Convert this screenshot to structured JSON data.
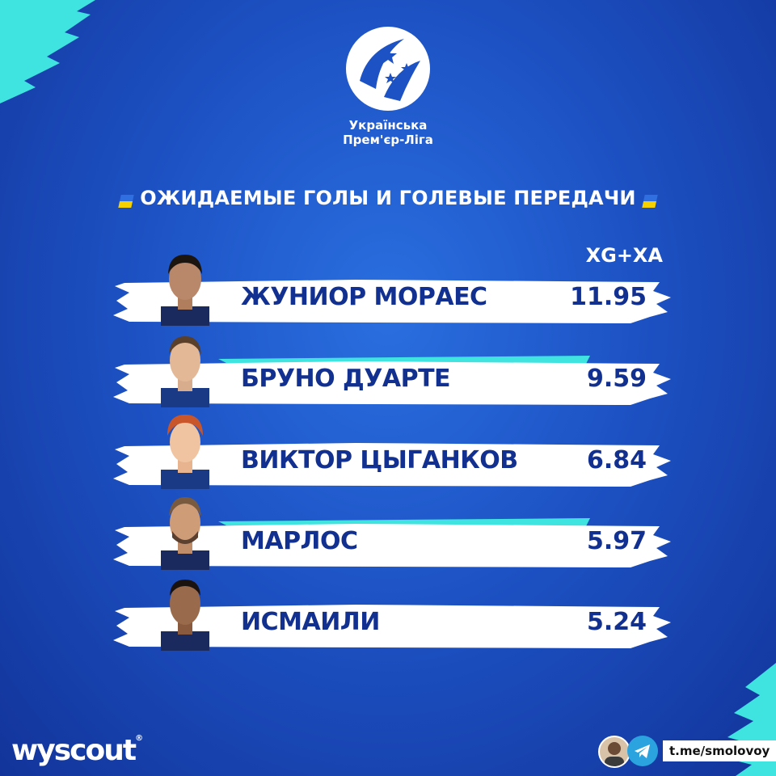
{
  "league": {
    "name_line1": "Українська",
    "name_line2": "Прем'єр-Ліга"
  },
  "title": "ОЖИДАЕМЫЕ ГОЛЫ И ГОЛЕВЫЕ ПЕРЕДАЧИ",
  "column_header": "XG+XA",
  "players": [
    {
      "name": "ЖУНИОР МОРАЕС",
      "value": "11.95"
    },
    {
      "name": "БРУНО ДУАРТЕ",
      "value": "9.59"
    },
    {
      "name": "ВИКТОР ЦЫГАНКОВ",
      "value": "6.84"
    },
    {
      "name": "МАРЛОС",
      "value": "5.97"
    },
    {
      "name": "ИСМАИЛИ",
      "value": "5.24"
    }
  ],
  "footer": {
    "brand": "wyscout",
    "brand_mark": "®",
    "telegram_handle": "t.me/smolovoy"
  },
  "colors": {
    "accent_cyan": "#3fe3e0",
    "name_blue": "#12308f",
    "flag_blue": "#2f6fe0",
    "flag_yellow": "#f6d100"
  },
  "icons": [
    "league-logo-icon",
    "telegram-icon",
    "ukraine-flag-icon"
  ]
}
